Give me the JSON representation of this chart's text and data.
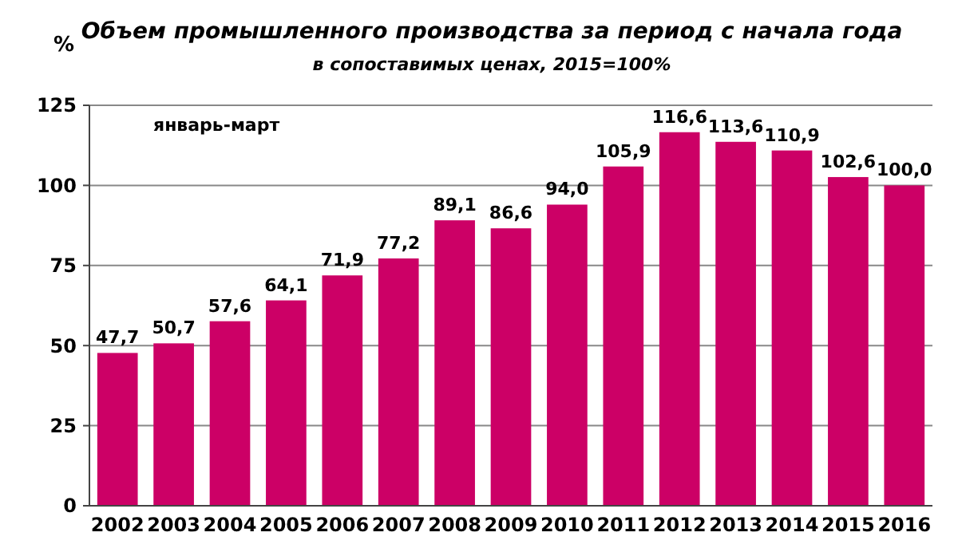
{
  "chart_data": {
    "type": "bar",
    "title": "Объем промышленного производства за период с начала года",
    "subtitle": "в сопоставимых  ценах,  2015=100%",
    "ylabel": "%",
    "annotations": [
      "январь-март"
    ],
    "categories": [
      "2002",
      "2003",
      "2004",
      "2005",
      "2006",
      "2007",
      "2008",
      "2009",
      "2010",
      "2011",
      "2012",
      "2013",
      "2014",
      "2015",
      "2016"
    ],
    "values": [
      47.7,
      50.7,
      57.6,
      64.1,
      71.9,
      77.2,
      89.1,
      86.6,
      94.0,
      105.9,
      116.6,
      113.6,
      110.9,
      102.6,
      100.0
    ],
    "value_labels": [
      "47,7",
      "50,7",
      "57,6",
      "64,1",
      "71,9",
      "77,2",
      "89,1",
      "86,6",
      "94,0",
      "105,9",
      "116,6",
      "113,6",
      "110,9",
      "102,6",
      "100,0"
    ],
    "color": "#cc0066",
    "ylim": [
      0,
      125
    ],
    "yticks": [
      0,
      25,
      50,
      75,
      100,
      125
    ],
    "grid": "y"
  }
}
